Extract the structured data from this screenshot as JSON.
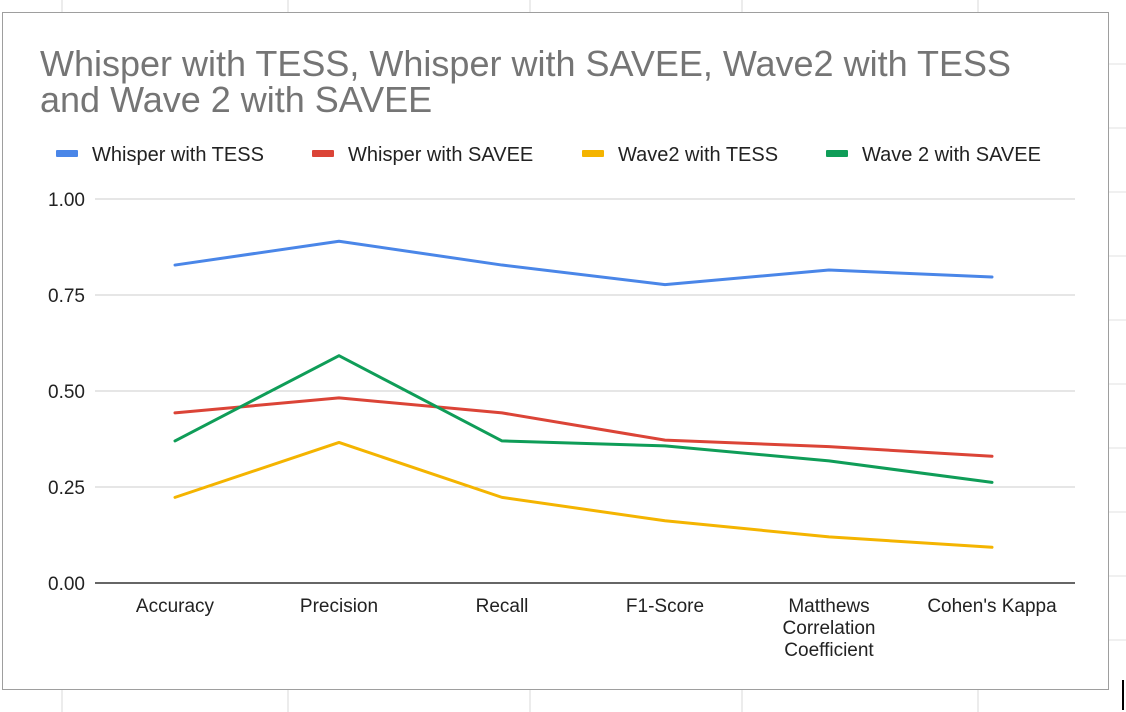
{
  "chart_data": {
    "type": "line",
    "title_lines": [
      "Whisper with TESS, Whisper with SAVEE, Wave2 with TESS",
      "and Wave 2 with SAVEE"
    ],
    "xlabel": "",
    "ylabel": "",
    "categories": [
      [
        "Accuracy"
      ],
      [
        "Precision"
      ],
      [
        "Recall"
      ],
      [
        "F1-Score"
      ],
      [
        "Matthews",
        "Correlation",
        "Coefficient"
      ],
      [
        "Cohen's Kappa"
      ]
    ],
    "ylim": [
      0,
      1
    ],
    "yticks": [
      "0.00",
      "0.25",
      "0.50",
      "0.75",
      "1.00"
    ],
    "ytick_values": [
      0,
      0.25,
      0.5,
      0.75,
      1.0
    ],
    "grid": true,
    "legend_position": "top",
    "series": [
      {
        "name": "Whisper with TESS",
        "color": "#4a86e8",
        "values": [
          0.828,
          0.89,
          0.828,
          0.777,
          0.815,
          0.797
        ]
      },
      {
        "name": "Whisper with SAVEE",
        "color": "#db4437",
        "values": [
          0.443,
          0.482,
          0.443,
          0.372,
          0.355,
          0.33
        ]
      },
      {
        "name": "Wave2 with TESS",
        "color": "#f4b400",
        "values": [
          0.223,
          0.366,
          0.223,
          0.162,
          0.12,
          0.093
        ]
      },
      {
        "name": "Wave 2 with SAVEE",
        "color": "#0f9d58",
        "values": [
          0.37,
          0.592,
          0.37,
          0.357,
          0.318,
          0.262
        ]
      }
    ]
  }
}
